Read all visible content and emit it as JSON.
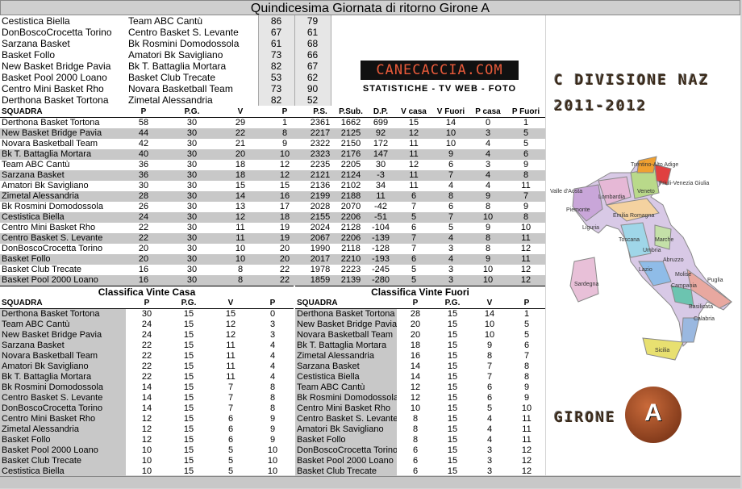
{
  "title": "Quindicesima Giornata di ritorno Girone A",
  "results": [
    {
      "home": "Cestistica Biella",
      "away": "Team ABC Cantù",
      "hs": "86",
      "as": "79"
    },
    {
      "home": "DonBoscoCrocetta Torino",
      "away": "Centro Basket S. Levante",
      "hs": "67",
      "as": "61"
    },
    {
      "home": "Sarzana Basket",
      "away": "Bk Rosmini Domodossola",
      "hs": "61",
      "as": "68"
    },
    {
      "home": "Basket Follo",
      "away": "Amatori Bk Savigliano",
      "hs": "73",
      "as": "66"
    },
    {
      "home": "New Basket Bridge Pavia",
      "away": "Bk T. Battaglia Mortara",
      "hs": "82",
      "as": "67"
    },
    {
      "home": "Basket Pool 2000 Loano",
      "away": "Basket Club Trecate",
      "hs": "53",
      "as": "62"
    },
    {
      "home": "Centro Mini Basket Rho",
      "away": "Novara Basketball Team",
      "hs": "73",
      "as": "90"
    },
    {
      "home": "Derthona Basket Tortona",
      "away": "Zimetal Alessandria",
      "hs": "82",
      "as": "52"
    }
  ],
  "logo": {
    "name": "CANECACCIA.COM",
    "tagline": "STATISTICHE - TV WEB - FOTO"
  },
  "side": {
    "division": "C DIVISIONE NAZ",
    "season": "2011-2012",
    "girone_label": "GIRONE",
    "girone_letter": "A"
  },
  "standings": {
    "headers": [
      "SQUADRA",
      "P",
      "P.G.",
      "V",
      "P",
      "P.S.",
      "P.Sub.",
      "D.P.",
      "V casa",
      "V Fuori",
      "P casa",
      "P Fuori"
    ],
    "rows": [
      [
        "Derthona Basket Tortona",
        "58",
        "30",
        "29",
        "1",
        "2361",
        "1662",
        "699",
        "15",
        "14",
        "0",
        "1"
      ],
      [
        "New Basket Bridge Pavia",
        "44",
        "30",
        "22",
        "8",
        "2217",
        "2125",
        "92",
        "12",
        "10",
        "3",
        "5"
      ],
      [
        "Novara Basketball Team",
        "42",
        "30",
        "21",
        "9",
        "2322",
        "2150",
        "172",
        "11",
        "10",
        "4",
        "5"
      ],
      [
        "Bk T. Battaglia Mortara",
        "40",
        "30",
        "20",
        "10",
        "2323",
        "2176",
        "147",
        "11",
        "9",
        "4",
        "6"
      ],
      [
        "Team ABC Cantù",
        "36",
        "30",
        "18",
        "12",
        "2235",
        "2205",
        "30",
        "12",
        "6",
        "3",
        "9"
      ],
      [
        "Sarzana Basket",
        "36",
        "30",
        "18",
        "12",
        "2121",
        "2124",
        "-3",
        "11",
        "7",
        "4",
        "8"
      ],
      [
        "Amatori Bk Savigliano",
        "30",
        "30",
        "15",
        "15",
        "2136",
        "2102",
        "34",
        "11",
        "4",
        "4",
        "11"
      ],
      [
        "Zimetal Alessandria",
        "28",
        "30",
        "14",
        "16",
        "2199",
        "2188",
        "11",
        "6",
        "8",
        "9",
        "7"
      ],
      [
        "Bk Rosmini Domodossola",
        "26",
        "30",
        "13",
        "17",
        "2028",
        "2070",
        "-42",
        "7",
        "6",
        "8",
        "9"
      ],
      [
        "Cestistica Biella",
        "24",
        "30",
        "12",
        "18",
        "2155",
        "2206",
        "-51",
        "5",
        "7",
        "10",
        "8"
      ],
      [
        "Centro Mini Basket Rho",
        "22",
        "30",
        "11",
        "19",
        "2024",
        "2128",
        "-104",
        "6",
        "5",
        "9",
        "10"
      ],
      [
        "Centro Basket S. Levante",
        "22",
        "30",
        "11",
        "19",
        "2067",
        "2206",
        "-139",
        "7",
        "4",
        "8",
        "11"
      ],
      [
        "DonBoscoCrocetta Torino",
        "20",
        "30",
        "10",
        "20",
        "1990",
        "2118",
        "-128",
        "7",
        "3",
        "8",
        "12"
      ],
      [
        "Basket Follo",
        "20",
        "30",
        "10",
        "20",
        "2017",
        "2210",
        "-193",
        "6",
        "4",
        "9",
        "11"
      ],
      [
        "Basket Club Trecate",
        "16",
        "30",
        "8",
        "22",
        "1978",
        "2223",
        "-245",
        "5",
        "3",
        "10",
        "12"
      ],
      [
        "Basket Pool 2000 Loano",
        "16",
        "30",
        "8",
        "22",
        "1859",
        "2139",
        "-280",
        "5",
        "3",
        "10",
        "12"
      ]
    ]
  },
  "home_table": {
    "title": "Classifica Vinte Casa",
    "headers": [
      "SQUADRA",
      "P",
      "P.G.",
      "V",
      "P"
    ],
    "rows": [
      [
        "Derthona Basket Tortona",
        "30",
        "15",
        "15",
        "0"
      ],
      [
        "Team ABC Cantù",
        "24",
        "15",
        "12",
        "3"
      ],
      [
        "New Basket Bridge Pavia",
        "24",
        "15",
        "12",
        "3"
      ],
      [
        "Sarzana Basket",
        "22",
        "15",
        "11",
        "4"
      ],
      [
        "Novara Basketball Team",
        "22",
        "15",
        "11",
        "4"
      ],
      [
        "Amatori Bk Savigliano",
        "22",
        "15",
        "11",
        "4"
      ],
      [
        "Bk T. Battaglia Mortara",
        "22",
        "15",
        "11",
        "4"
      ],
      [
        "Bk Rosmini Domodossola",
        "14",
        "15",
        "7",
        "8"
      ],
      [
        "Centro Basket S. Levante",
        "14",
        "15",
        "7",
        "8"
      ],
      [
        "DonBoscoCrocetta Torino",
        "14",
        "15",
        "7",
        "8"
      ],
      [
        "Centro Mini Basket Rho",
        "12",
        "15",
        "6",
        "9"
      ],
      [
        "Zimetal Alessandria",
        "12",
        "15",
        "6",
        "9"
      ],
      [
        "Basket Follo",
        "12",
        "15",
        "6",
        "9"
      ],
      [
        "Basket Pool 2000 Loano",
        "10",
        "15",
        "5",
        "10"
      ],
      [
        "Basket Club Trecate",
        "10",
        "15",
        "5",
        "10"
      ],
      [
        "Cestistica Biella",
        "10",
        "15",
        "5",
        "10"
      ]
    ]
  },
  "away_table": {
    "title": "Classifica Vinte Fuori",
    "headers": [
      "SQUADRA",
      "P",
      "P.G.",
      "V",
      "P"
    ],
    "rows": [
      [
        "Derthona Basket Tortona",
        "28",
        "15",
        "14",
        "1"
      ],
      [
        "New Basket Bridge Pavia",
        "20",
        "15",
        "10",
        "5"
      ],
      [
        "Novara Basketball Team",
        "20",
        "15",
        "10",
        "5"
      ],
      [
        "Bk T. Battaglia Mortara",
        "18",
        "15",
        "9",
        "6"
      ],
      [
        "Zimetal Alessandria",
        "16",
        "15",
        "8",
        "7"
      ],
      [
        "Sarzana Basket",
        "14",
        "15",
        "7",
        "8"
      ],
      [
        "Cestistica Biella",
        "14",
        "15",
        "7",
        "8"
      ],
      [
        "Team ABC Cantù",
        "12",
        "15",
        "6",
        "9"
      ],
      [
        "Bk Rosmini Domodossola",
        "12",
        "15",
        "6",
        "9"
      ],
      [
        "Centro Mini Basket Rho",
        "10",
        "15",
        "5",
        "10"
      ],
      [
        "Centro Basket S. Levante",
        "8",
        "15",
        "4",
        "11"
      ],
      [
        "Amatori Bk Savigliano",
        "8",
        "15",
        "4",
        "11"
      ],
      [
        "Basket Follo",
        "8",
        "15",
        "4",
        "11"
      ],
      [
        "DonBoscoCrocetta Torino",
        "6",
        "15",
        "3",
        "12"
      ],
      [
        "Basket Pool 2000 Loano",
        "6",
        "15",
        "3",
        "12"
      ],
      [
        "Basket Club Trecate",
        "6",
        "15",
        "3",
        "12"
      ]
    ]
  },
  "regions": [
    "Valle d'Aosta",
    "Trentino-Alto Adige",
    "Friuli-Venezia Giulia",
    "Lombardia",
    "Veneto",
    "Piemonte",
    "Emilia Romagna",
    "Liguria",
    "Toscana",
    "Marche",
    "Umbria",
    "Abruzzo",
    "Lazio",
    "Molise",
    "Campania",
    "Puglia",
    "Basilicata",
    "Calabria",
    "Sardegna",
    "Sicilia"
  ],
  "colors": {
    "row_alt": "#c8c8c8",
    "logo_bg": "#111111",
    "logo_fg": "#e85a3a"
  }
}
